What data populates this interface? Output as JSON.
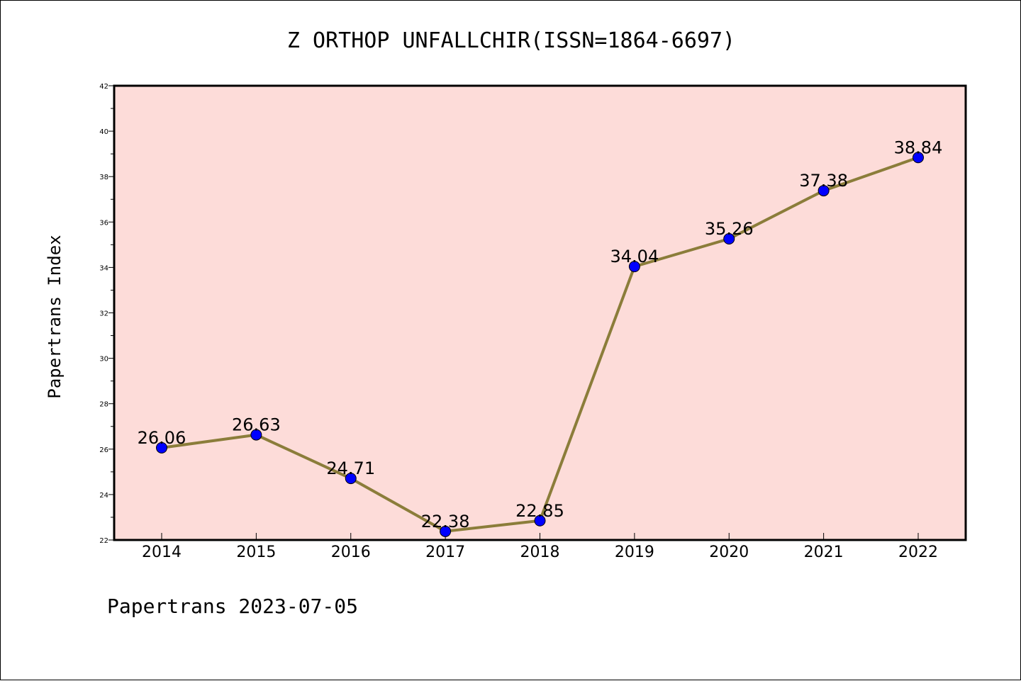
{
  "chart_data": {
    "type": "line",
    "title": "Z ORTHOP UNFALLCHIR(ISSN=1864-6697)",
    "xlabel": "",
    "ylabel": "Papertrans Index",
    "categories": [
      "2014",
      "2015",
      "2016",
      "2017",
      "2018",
      "2019",
      "2020",
      "2021",
      "2022"
    ],
    "series": [
      {
        "values": [
          26.06,
          26.63,
          24.71,
          22.38,
          22.85,
          34.04,
          35.26,
          37.38,
          38.84
        ],
        "labels": [
          "26.06",
          "26.63",
          "24.71",
          "22.38",
          "22.85",
          "34.04",
          "35.26",
          "37.38",
          "38.84"
        ],
        "line_color": "#8b7d3a",
        "marker_color": "#0000ff"
      }
    ],
    "ylim": [
      22,
      42
    ],
    "yticks": [
      "22",
      "24",
      "26",
      "28",
      "30",
      "32",
      "34",
      "36",
      "38",
      "40",
      "42"
    ],
    "plot_background": "#fddcd9",
    "grid": false,
    "legend": "none"
  },
  "footer": "Papertrans 2023-07-05"
}
